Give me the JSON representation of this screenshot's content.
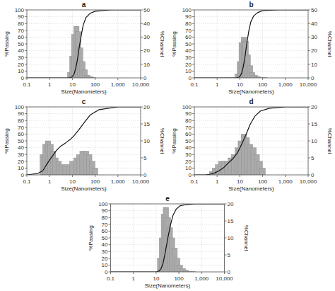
{
  "chart_data": [
    {
      "type": "line",
      "title": "a",
      "x_label": "Size(Nanometers)",
      "y_label": "%Passing",
      "y2_label": "%Channel",
      "log": "x",
      "grid": true,
      "xlim": [
        0.1,
        10000
      ],
      "xticks": [
        0.1,
        1,
        10,
        100,
        {
          "value": 1000,
          "label": "1,000"
        },
        {
          "value": 10000,
          "label": "10,000"
        }
      ],
      "ylim": [
        0,
        100
      ],
      "yticks": [
        0,
        10,
        20,
        30,
        40,
        50,
        60,
        70,
        80,
        90,
        100
      ],
      "y2lim": [
        0,
        50
      ],
      "y2ticks": [
        0,
        10,
        20,
        30,
        40,
        50
      ],
      "series": [
        {
          "type": "bar",
          "axis": "y2",
          "color": "#aaaaaa",
          "x": [
            8,
            10,
            12,
            15,
            18,
            22,
            28,
            35,
            45,
            60,
            80
          ],
          "values": [
            4,
            16,
            32,
            38,
            34,
            22,
            12,
            6,
            2,
            1,
            0.3
          ]
        },
        {
          "type": "line",
          "color": "#111111",
          "x": [
            0.1,
            1,
            3,
            5,
            7,
            9,
            10,
            12,
            14,
            17,
            20,
            25,
            30,
            40,
            60,
            100,
            500,
            10000
          ],
          "values": [
            0,
            0,
            0,
            0,
            0,
            1,
            2,
            6,
            14,
            28,
            45,
            64,
            78,
            89,
            95,
            98,
            100,
            100
          ]
        }
      ]
    },
    {
      "type": "line",
      "title": "b",
      "x_label": "Size(Nanometers)",
      "y_label": "%Passing",
      "y2_label": "%Channel",
      "log": "x",
      "grid": true,
      "xlim": [
        0.1,
        10000
      ],
      "xticks": [
        0.1,
        1,
        10,
        100,
        {
          "value": 1000,
          "label": "1,000"
        },
        {
          "value": 10000,
          "label": "10,000"
        }
      ],
      "ylim": [
        0,
        100
      ],
      "yticks": [
        0,
        10,
        20,
        30,
        40,
        50,
        60,
        70,
        80,
        90,
        100
      ],
      "y2lim": [
        0,
        50
      ],
      "y2ticks": [
        0,
        10,
        20,
        30,
        40,
        50
      ],
      "series": [
        {
          "type": "bar",
          "axis": "y2",
          "color": "#aaaaaa",
          "x": [
            8,
            10,
            12,
            15,
            18,
            22,
            28,
            35,
            45,
            60,
            80,
            120
          ],
          "values": [
            3,
            12,
            26,
            30,
            27,
            17,
            9,
            4,
            2,
            1,
            0.5,
            0.2
          ]
        },
        {
          "type": "line",
          "color": "#111111",
          "x": [
            0.1,
            1,
            3,
            5,
            7,
            9,
            10,
            12,
            14,
            17,
            20,
            25,
            30,
            40,
            60,
            100,
            500,
            10000
          ],
          "values": [
            0,
            0,
            0,
            0,
            0,
            1,
            2,
            7,
            16,
            32,
            50,
            70,
            82,
            91,
            96,
            99,
            100,
            100
          ]
        }
      ]
    },
    {
      "type": "line",
      "title": "c",
      "x_label": "Size(Nanometers)",
      "y_label": "%Passing",
      "y2_label": "%Channel",
      "log": "x",
      "grid": true,
      "xlim": [
        0.1,
        10000
      ],
      "xticks": [
        0.1,
        1,
        10,
        100,
        {
          "value": 1000,
          "label": "1,000"
        },
        {
          "value": 10000,
          "label": "10,000"
        }
      ],
      "ylim": [
        0,
        100
      ],
      "yticks": [
        0,
        10,
        20,
        30,
        40,
        50,
        60,
        70,
        80,
        90,
        100
      ],
      "y2lim": [
        0,
        20
      ],
      "y2ticks": [
        0,
        5,
        10,
        15,
        20
      ],
      "series": [
        {
          "type": "bar",
          "axis": "y2",
          "color": "#aaaaaa",
          "x": [
            0.5,
            0.65,
            0.85,
            1.1,
            1.4,
            1.8,
            2.5,
            3.5,
            5,
            7,
            10,
            15,
            20,
            28,
            40,
            55,
            75,
            100
          ],
          "values": [
            6,
            9,
            10,
            9,
            7,
            5,
            4,
            3,
            3,
            3,
            4,
            5,
            6,
            7,
            7,
            6,
            4,
            2
          ]
        },
        {
          "type": "line",
          "color": "#111111",
          "x": [
            0.1,
            0.3,
            0.5,
            0.7,
            1.0,
            1.5,
            2,
            3,
            5,
            8,
            12,
            20,
            35,
            60,
            150,
            1000,
            10000
          ],
          "values": [
            0,
            2,
            6,
            14,
            22,
            30,
            36,
            42,
            47,
            52,
            58,
            67,
            78,
            88,
            96,
            100,
            100
          ]
        }
      ]
    },
    {
      "type": "line",
      "title": "d",
      "x_label": "Size(Nanometers)",
      "y_label": "%Passing",
      "y2_label": "%Channel",
      "log": "x",
      "grid": true,
      "xlim": [
        0.1,
        10000
      ],
      "xticks": [
        0.1,
        1,
        10,
        100,
        {
          "value": 1000,
          "label": "1,000"
        },
        {
          "value": 10000,
          "label": "10,000"
        }
      ],
      "ylim": [
        0,
        100
      ],
      "yticks": [
        0,
        10,
        20,
        30,
        40,
        50,
        60,
        70,
        80,
        90,
        100
      ],
      "y2lim": [
        0,
        20
      ],
      "y2ticks": [
        0,
        5,
        10,
        15,
        20
      ],
      "series": [
        {
          "type": "bar",
          "axis": "y2",
          "color": "#aaaaaa",
          "x": [
            0.6,
            0.8,
            1.1,
            1.5,
            2,
            2.8,
            4,
            5.5,
            8,
            11,
            15,
            20,
            28,
            40,
            55,
            75,
            100
          ],
          "values": [
            1,
            2,
            3,
            4,
            4,
            4,
            5,
            6,
            8,
            10,
            12,
            11,
            9,
            8,
            6,
            4,
            2
          ]
        },
        {
          "type": "line",
          "color": "#111111",
          "x": [
            0.1,
            0.3,
            0.5,
            0.8,
            1.2,
            2,
            3,
            5,
            8,
            12,
            18,
            28,
            45,
            80,
            200,
            1000,
            10000
          ],
          "values": [
            0,
            0,
            1,
            3,
            6,
            11,
            17,
            24,
            33,
            45,
            58,
            74,
            86,
            94,
            98,
            100,
            100
          ]
        }
      ]
    },
    {
      "type": "line",
      "title": "e",
      "x_label": "Size(Nanometers)",
      "y_label": "%Passing",
      "y2_label": "%Channel",
      "log": "x",
      "grid": true,
      "xlim": [
        0.1,
        10000
      ],
      "xticks": [
        0.1,
        1,
        10,
        100,
        {
          "value": 1000,
          "label": "1,000"
        },
        {
          "value": 10000,
          "label": "10,000"
        }
      ],
      "ylim": [
        0,
        100
      ],
      "yticks": [
        0,
        10,
        20,
        30,
        40,
        50,
        60,
        70,
        80,
        90,
        100
      ],
      "y2lim": [
        0,
        20
      ],
      "y2ticks": [
        0,
        5,
        10,
        15,
        20
      ],
      "series": [
        {
          "type": "bar",
          "axis": "y2",
          "color": "#aaaaaa",
          "x": [
            15,
            18,
            22,
            27,
            33,
            40,
            50,
            65,
            85,
            110,
            150,
            200,
            280,
            400
          ],
          "values": [
            4,
            10,
            17,
            19,
            16,
            13,
            10,
            7,
            4,
            2,
            1,
            0.5,
            0.2,
            0.1
          ]
        },
        {
          "type": "line",
          "color": "#111111",
          "x": [
            0.1,
            1,
            5,
            10,
            13,
            16,
            20,
            25,
            32,
            42,
            55,
            75,
            110,
            200,
            500,
            10000
          ],
          "values": [
            0,
            0,
            0,
            0,
            1,
            4,
            12,
            28,
            48,
            68,
            83,
            92,
            97,
            99,
            100,
            100
          ]
        }
      ]
    }
  ]
}
